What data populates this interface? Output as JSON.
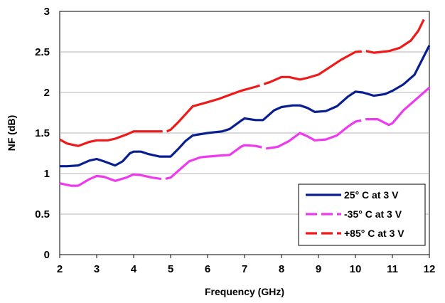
{
  "chart_data": {
    "type": "line",
    "title": "",
    "xlabel": "Frequency (GHz)",
    "ylabel": "NF (dB)",
    "xlim": [
      2,
      12
    ],
    "ylim": [
      0,
      3
    ],
    "x_ticks": [
      "2",
      "3",
      "4",
      "5",
      "6",
      "7",
      "8",
      "9",
      "10",
      "11",
      "12"
    ],
    "y_ticks": [
      "0",
      "0.5",
      "1",
      "1.5",
      "2",
      "2.5",
      "3"
    ],
    "grid": "horizontal",
    "legend_position": "bottom-right",
    "series": [
      {
        "name": "25° C at 3 V",
        "color": "#0a1f8f",
        "dash": "solid",
        "points": [
          [
            2.0,
            1.09
          ],
          [
            2.2,
            1.09
          ],
          [
            2.5,
            1.1
          ],
          [
            2.8,
            1.16
          ],
          [
            3.0,
            1.18
          ],
          [
            3.2,
            1.15
          ],
          [
            3.5,
            1.1
          ],
          [
            3.7,
            1.15
          ],
          [
            3.9,
            1.25
          ],
          [
            4.0,
            1.27
          ],
          [
            4.2,
            1.27
          ],
          [
            4.4,
            1.24
          ],
          [
            4.7,
            1.21
          ],
          [
            5.0,
            1.21
          ],
          [
            5.2,
            1.3
          ],
          [
            5.4,
            1.4
          ],
          [
            5.6,
            1.47
          ],
          [
            6.0,
            1.5
          ],
          [
            6.4,
            1.52
          ],
          [
            6.6,
            1.55
          ],
          [
            6.9,
            1.65
          ],
          [
            7.0,
            1.68
          ],
          [
            7.3,
            1.66
          ],
          [
            7.5,
            1.66
          ],
          [
            7.8,
            1.78
          ],
          [
            8.0,
            1.82
          ],
          [
            8.3,
            1.84
          ],
          [
            8.5,
            1.84
          ],
          [
            8.7,
            1.81
          ],
          [
            8.9,
            1.76
          ],
          [
            9.2,
            1.77
          ],
          [
            9.5,
            1.83
          ],
          [
            9.8,
            1.95
          ],
          [
            10.0,
            2.01
          ],
          [
            10.2,
            2.0
          ],
          [
            10.5,
            1.96
          ],
          [
            10.8,
            1.98
          ],
          [
            11.0,
            2.02
          ],
          [
            11.3,
            2.1
          ],
          [
            11.6,
            2.22
          ],
          [
            11.8,
            2.4
          ],
          [
            12.0,
            2.58
          ]
        ]
      },
      {
        "name": "-35° C at 3 V",
        "color": "#ee3aee",
        "dash": "dashed",
        "points": [
          [
            2.0,
            0.88
          ],
          [
            2.3,
            0.85
          ],
          [
            2.5,
            0.85
          ],
          [
            2.8,
            0.93
          ],
          [
            3.0,
            0.97
          ],
          [
            3.2,
            0.96
          ],
          [
            3.5,
            0.91
          ],
          [
            3.8,
            0.95
          ],
          [
            4.0,
            0.99
          ],
          [
            4.2,
            0.98
          ],
          [
            4.5,
            0.95
          ],
          [
            4.8,
            0.93
          ],
          [
            5.0,
            0.95
          ],
          [
            5.3,
            1.07
          ],
          [
            5.5,
            1.15
          ],
          [
            5.8,
            1.2
          ],
          [
            6.0,
            1.21
          ],
          [
            6.3,
            1.22
          ],
          [
            6.6,
            1.23
          ],
          [
            6.9,
            1.33
          ],
          [
            7.0,
            1.35
          ],
          [
            7.3,
            1.34
          ],
          [
            7.6,
            1.31
          ],
          [
            7.9,
            1.33
          ],
          [
            8.2,
            1.4
          ],
          [
            8.5,
            1.5
          ],
          [
            8.7,
            1.46
          ],
          [
            8.9,
            1.41
          ],
          [
            9.2,
            1.42
          ],
          [
            9.5,
            1.47
          ],
          [
            9.8,
            1.58
          ],
          [
            10.0,
            1.64
          ],
          [
            10.3,
            1.67
          ],
          [
            10.6,
            1.67
          ],
          [
            10.9,
            1.6
          ],
          [
            11.0,
            1.62
          ],
          [
            11.3,
            1.78
          ],
          [
            11.6,
            1.9
          ],
          [
            12.0,
            2.06
          ]
        ]
      },
      {
        "name": "+85° C at 3 V",
        "color": "#ee1a1a",
        "dash": "dashed",
        "points": [
          [
            2.0,
            1.42
          ],
          [
            2.2,
            1.37
          ],
          [
            2.5,
            1.34
          ],
          [
            2.8,
            1.39
          ],
          [
            3.0,
            1.41
          ],
          [
            3.3,
            1.41
          ],
          [
            3.5,
            1.43
          ],
          [
            3.8,
            1.48
          ],
          [
            4.0,
            1.52
          ],
          [
            4.3,
            1.52
          ],
          [
            4.6,
            1.52
          ],
          [
            4.9,
            1.52
          ],
          [
            5.0,
            1.54
          ],
          [
            5.2,
            1.63
          ],
          [
            5.4,
            1.73
          ],
          [
            5.6,
            1.83
          ],
          [
            6.0,
            1.88
          ],
          [
            6.3,
            1.92
          ],
          [
            6.6,
            1.97
          ],
          [
            6.9,
            2.02
          ],
          [
            7.3,
            2.07
          ],
          [
            7.7,
            2.13
          ],
          [
            8.0,
            2.19
          ],
          [
            8.2,
            2.19
          ],
          [
            8.5,
            2.16
          ],
          [
            8.7,
            2.18
          ],
          [
            9.0,
            2.22
          ],
          [
            9.3,
            2.31
          ],
          [
            9.6,
            2.4
          ],
          [
            10.0,
            2.5
          ],
          [
            10.3,
            2.51
          ],
          [
            10.5,
            2.49
          ],
          [
            10.9,
            2.51
          ],
          [
            11.2,
            2.55
          ],
          [
            11.5,
            2.64
          ],
          [
            11.7,
            2.76
          ],
          [
            11.85,
            2.9
          ]
        ]
      }
    ]
  }
}
